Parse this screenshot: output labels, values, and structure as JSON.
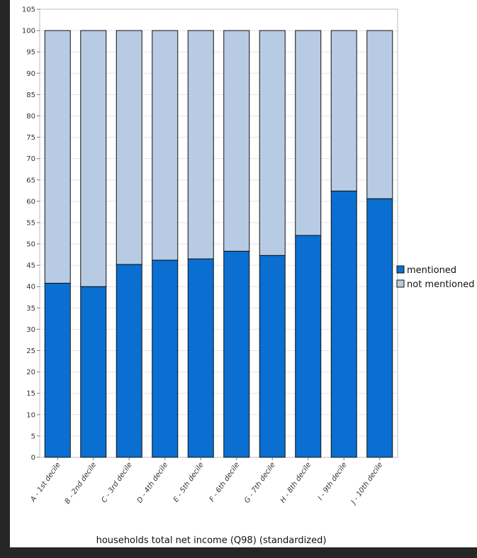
{
  "chart_data": {
    "type": "bar",
    "stacked": true,
    "categories": [
      "A - 1st decile",
      "B - 2nd decile",
      "C - 3rd decile",
      "D - 4th decile",
      "E - 5th decile",
      "F - 6th decile",
      "G - 7th decile",
      "H - 8th decile",
      "I - 9th decile",
      "J - 10th decile"
    ],
    "series": [
      {
        "name": "mentioned",
        "values": [
          40.8,
          40.0,
          45.2,
          46.2,
          46.5,
          48.3,
          47.3,
          52.0,
          62.4,
          60.6
        ],
        "color": "#0a6fd0"
      },
      {
        "name": "not mentioned",
        "values": [
          59.2,
          60.0,
          54.8,
          53.8,
          53.5,
          51.7,
          52.7,
          48.0,
          37.6,
          39.4
        ],
        "color": "#b8cbe4"
      }
    ],
    "title": "",
    "xlabel": "households total net income (Q98) (standardized)",
    "ylabel": "",
    "ylim": [
      0,
      105
    ],
    "yticks": [
      0,
      5,
      10,
      15,
      20,
      25,
      30,
      35,
      40,
      45,
      50,
      55,
      60,
      65,
      70,
      75,
      80,
      85,
      90,
      95,
      100,
      105
    ],
    "grid": true,
    "legend_position": "right"
  }
}
